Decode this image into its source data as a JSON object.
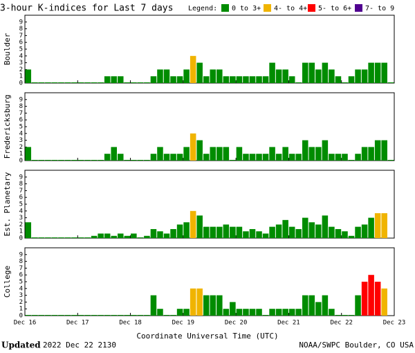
{
  "header": {
    "title": "3-hour K-indices for Last 7 days",
    "legend_title": "Legend:",
    "legend": [
      {
        "name": "0 to 3+",
        "color": "#008c00",
        "min": 0
      },
      {
        "name": "4- to 4+",
        "color": "#f0b400",
        "min": 3.67
      },
      {
        "name": "5- to 6+",
        "color": "#ff0000",
        "min": 4.67
      },
      {
        "name": "7- to 9",
        "color": "#500090",
        "min": 6.67
      }
    ]
  },
  "chart_data": [
    {
      "type": "bar",
      "ylabel": "Boulder",
      "xlim": [
        0,
        7
      ],
      "ylim": [
        0,
        10
      ],
      "yticks": [
        0,
        1,
        2,
        3,
        4,
        5,
        6,
        7,
        8,
        9
      ],
      "values": [
        2,
        0,
        0,
        0,
        0,
        0,
        0,
        0,
        0,
        0,
        0,
        0,
        1,
        1,
        1,
        0,
        0,
        0,
        0,
        1,
        2,
        2,
        1,
        1,
        2,
        4,
        3,
        1,
        2,
        2,
        1,
        1,
        1,
        1,
        1,
        1,
        1,
        3,
        2,
        2,
        1,
        0,
        3,
        3,
        2,
        3,
        2,
        1,
        0,
        1,
        2,
        2,
        3,
        3,
        3,
        0
      ]
    },
    {
      "type": "bar",
      "ylabel": "Fredericksburg",
      "xlim": [
        0,
        7
      ],
      "ylim": [
        0,
        10
      ],
      "yticks": [
        0,
        1,
        2,
        3,
        4,
        5,
        6,
        7,
        8,
        9
      ],
      "values": [
        2,
        0,
        0,
        0,
        0,
        0,
        0,
        0,
        0,
        0,
        0,
        0,
        1,
        2,
        1,
        0,
        0,
        0,
        0,
        1,
        2,
        1,
        1,
        1,
        2,
        4,
        3,
        1,
        2,
        2,
        2,
        0,
        2,
        1,
        1,
        1,
        1,
        2,
        1,
        2,
        1,
        1,
        3,
        2,
        2,
        3,
        1,
        1,
        1,
        0,
        1,
        2,
        2,
        3,
        3,
        0
      ]
    },
    {
      "type": "bar",
      "ylabel": "Est. Planetary",
      "xlim": [
        0,
        7
      ],
      "ylim": [
        0,
        10
      ],
      "yticks": [
        0,
        1,
        2,
        3,
        4,
        5,
        6,
        7,
        8,
        9
      ],
      "values": [
        2.33,
        0,
        0,
        0,
        0,
        0,
        0,
        0,
        0,
        0,
        0.33,
        0.67,
        0.67,
        0.33,
        0.67,
        0.33,
        0.67,
        0,
        0.33,
        1.33,
        1,
        0.67,
        1.33,
        2,
        2.33,
        4,
        3.33,
        1.67,
        1.67,
        1.67,
        2,
        1.67,
        1.67,
        1,
        1.33,
        1,
        0.67,
        1.67,
        2,
        2.67,
        1.67,
        1.33,
        3,
        2.33,
        2,
        3.33,
        1.67,
        1.33,
        1,
        0.33,
        1.67,
        2,
        3,
        3.67,
        3.67,
        null
      ]
    },
    {
      "type": "bar",
      "ylabel": "College",
      "xlim": [
        0,
        7
      ],
      "ylim": [
        0,
        10
      ],
      "yticks": [
        0,
        1,
        2,
        3,
        4,
        5,
        6,
        7,
        8,
        9
      ],
      "values": [
        0,
        0,
        0,
        0,
        0,
        0,
        0,
        0,
        0,
        0,
        0,
        0,
        0,
        0,
        0,
        0,
        0,
        0,
        0,
        3,
        1,
        0,
        0,
        1,
        1,
        4,
        4,
        3,
        3,
        3,
        1,
        2,
        1,
        1,
        1,
        1,
        0,
        1,
        1,
        1,
        1,
        1,
        3,
        3,
        2,
        3,
        1,
        0,
        0,
        0,
        3,
        5,
        6,
        5,
        4,
        null
      ],
      "xticks": [
        {
          "value": 0,
          "label": "Dec 16"
        },
        {
          "value": 1,
          "label": "Dec 17"
        },
        {
          "value": 2,
          "label": "Dec 18"
        },
        {
          "value": 3,
          "label": "Dec 19"
        },
        {
          "value": 4,
          "label": "Dec 20"
        },
        {
          "value": 5,
          "label": "Dec 21"
        },
        {
          "value": 6,
          "label": "Dec 22"
        },
        {
          "value": 7,
          "label": "Dec 23"
        }
      ],
      "xlabel": "Coordinate Universal Time (UTC)"
    }
  ],
  "footer": {
    "updated_label": "Updated",
    "updated": "2022 Dec 22 2130",
    "credit": "NOAA/SWPC Boulder, CO USA"
  }
}
